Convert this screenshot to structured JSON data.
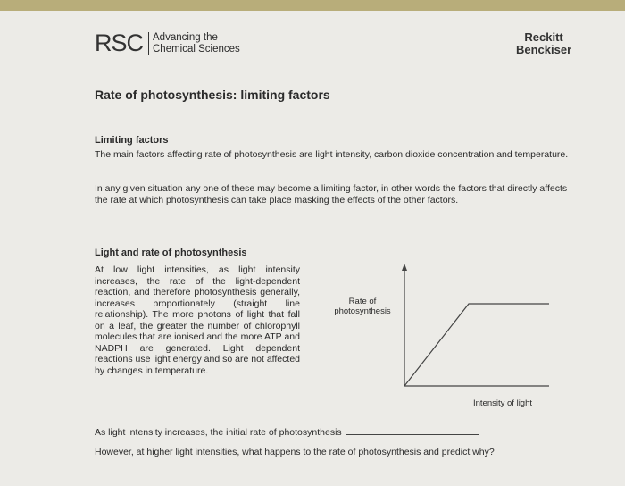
{
  "header": {
    "logo": "RSC",
    "logo_tagline": [
      "Advancing the",
      "Chemical Sciences"
    ],
    "sponsor": [
      "Reckitt",
      "Benckiser"
    ]
  },
  "title": "Rate of photosynthesis: limiting factors",
  "sections": [
    {
      "heading": "Limiting factors",
      "paragraphs": [
        "The main factors affecting rate of photosynthesis are light intensity, carbon dioxide concentration and temperature.",
        "In any given situation any one of these may become a limiting factor, in other words the factors that directly affects the rate at which photosynthesis can take place masking the effects of the other factors."
      ]
    },
    {
      "heading": "Light and rate of photosynthesis",
      "paragraphs": [
        "At low light intensities, as light intensity increases, the rate of the light-dependent reaction, and therefore photosynthesis generally, increases proportionately (straight line relationship). The more photons of light that fall on a leaf, the greater the number of chlorophyll molecules that are ionised and the more ATP and NADPH are generated. Light dependent reactions use light energy and so are not affected by changes in temperature."
      ]
    }
  ],
  "graph": {
    "y_label": "Rate of photosynthesis",
    "x_label": "Intensity of light"
  },
  "questions": [
    "As light intensity increases, the initial rate of photosynthesis",
    "However, at higher light intensities, what happens to the rate of photosynthesis and predict why?"
  ]
}
